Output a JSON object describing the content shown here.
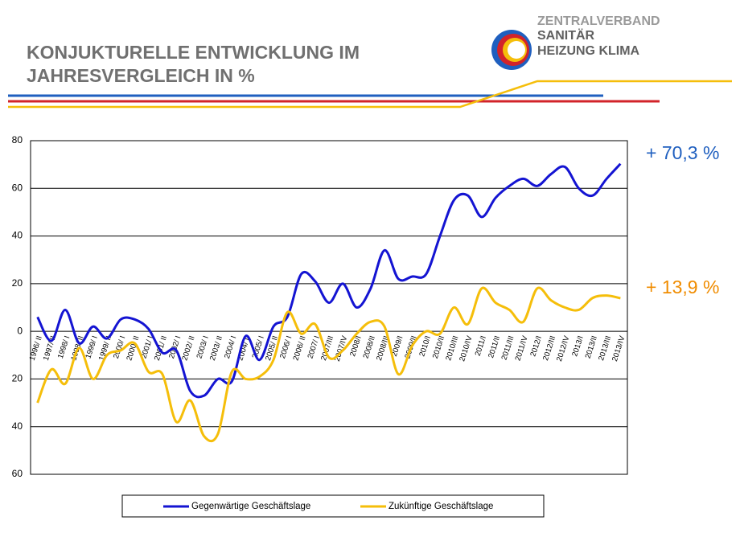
{
  "title_lines": [
    "KONJUKTURELLE ENTWICKLUNG IM",
    "JAHRESVERGLEICH IN %"
  ],
  "logo": [
    "ZENTRALVERBAND",
    "SANITÄR",
    "HEIZUNG KLIMA"
  ],
  "chart_data": {
    "type": "line",
    "categories": [
      "1996/ II",
      "1997/ II",
      "1998/ I",
      "1998/ II",
      "1999/ I",
      "1999/ II",
      "2000/ I",
      "2000/ II",
      "2001/ I",
      "2001/ II",
      "2002/ I",
      "2002/ II",
      "2003/ I",
      "2003/ II",
      "2004/ I",
      "2004/ II",
      "2005/ I",
      "2005/ II",
      "2006/ I",
      "2006/ II",
      "2007/ I",
      "2007/III",
      "2007/IV",
      "2008/I",
      "2008/II",
      "2008/III",
      "2009/I",
      "2009/II",
      "2010/I",
      "2010/II",
      "2010/III",
      "2010/IV",
      "2011/I",
      "2011/II",
      "2011/III",
      "2011/IV",
      "2012/I",
      "2012/III",
      "2012/IV",
      "2013/I",
      "2013/II",
      "2013/III",
      "2013/IV"
    ],
    "series": [
      {
        "name": "Gegenwärtige Geschäftslage",
        "color": "#1414d2",
        "values": [
          6,
          -4,
          9,
          -5,
          2,
          -3,
          5,
          5,
          1,
          -9,
          -8,
          -25,
          -27,
          -20,
          -21,
          -2,
          -12,
          2,
          6,
          24,
          21,
          12,
          20,
          10,
          18,
          34,
          22,
          23,
          24,
          40,
          55,
          57,
          48,
          56,
          61,
          64,
          61,
          66,
          69,
          60,
          57,
          64,
          70.3
        ]
      },
      {
        "name": "Zukünftige Geschäftslage",
        "color": "#f5be0a",
        "values": [
          -30,
          -16,
          -22,
          -7,
          -20,
          -10,
          -8,
          -5,
          -17,
          -18,
          -38,
          -29,
          -44,
          -43,
          -17,
          -20,
          -19,
          -12,
          8,
          -1,
          3,
          -11,
          -8,
          -1,
          4,
          2,
          -18,
          -6,
          0,
          -1,
          10,
          3,
          18,
          12,
          9,
          4,
          18,
          13,
          10,
          9,
          14,
          15,
          13.9
        ]
      }
    ],
    "ylim": [
      -60,
      80
    ],
    "yticks": [
      {
        "value": -60,
        "label": "60"
      },
      {
        "value": -40,
        "label": "40"
      },
      {
        "value": -20,
        "label": "20"
      },
      0,
      20,
      40,
      60,
      80
    ],
    "grid": true,
    "legend": "bottom",
    "annotations": [
      {
        "text": "+ 70,3 %",
        "color": "#1f5fbf"
      },
      {
        "text": "+ 13,9 %",
        "color": "#f08c00"
      }
    ]
  }
}
